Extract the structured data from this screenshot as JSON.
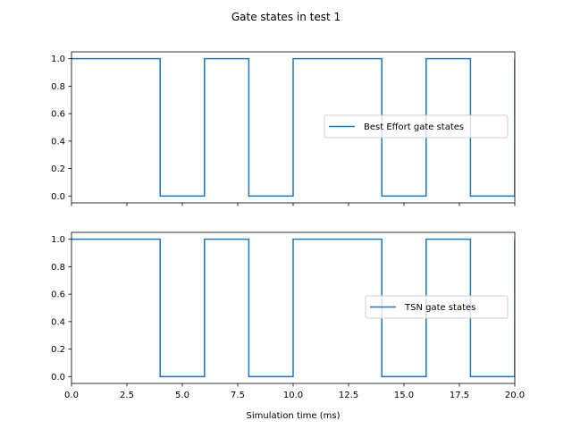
{
  "chart_data": {
    "type": "line",
    "title": "Gate states in test 1",
    "xlabel": "Simulation time (ms)",
    "line_color": "#1f77b4",
    "step": "post",
    "subplots": [
      {
        "id": "best-effort",
        "legend_label": "Best Effort gate states",
        "legend_loc": "center right",
        "x": [
          0,
          4,
          6,
          8,
          10,
          14,
          16,
          18,
          20
        ],
        "y": [
          1,
          0,
          1,
          0,
          1,
          0,
          1,
          0,
          1
        ],
        "xlim": [
          0,
          20
        ],
        "ylim": [
          -0.05,
          1.05
        ],
        "yticks": [
          "0.0",
          "0.2",
          "0.4",
          "0.6",
          "0.8",
          "1.0"
        ],
        "show_xticklabels": false
      },
      {
        "id": "tsn",
        "legend_label": "TSN gate states",
        "legend_loc": "center right",
        "x": [
          0,
          4,
          6,
          8,
          10,
          14,
          16,
          18,
          20
        ],
        "y": [
          1,
          0,
          1,
          0,
          1,
          0,
          1,
          0,
          1
        ],
        "xlim": [
          0,
          20
        ],
        "ylim": [
          -0.05,
          1.05
        ],
        "yticks": [
          "0.0",
          "0.2",
          "0.4",
          "0.6",
          "0.8",
          "1.0"
        ],
        "show_xticklabels": true
      }
    ],
    "xticks": [
      "0.0",
      "2.5",
      "5.0",
      "7.5",
      "10.0",
      "12.5",
      "15.0",
      "17.5",
      "20.0"
    ]
  }
}
